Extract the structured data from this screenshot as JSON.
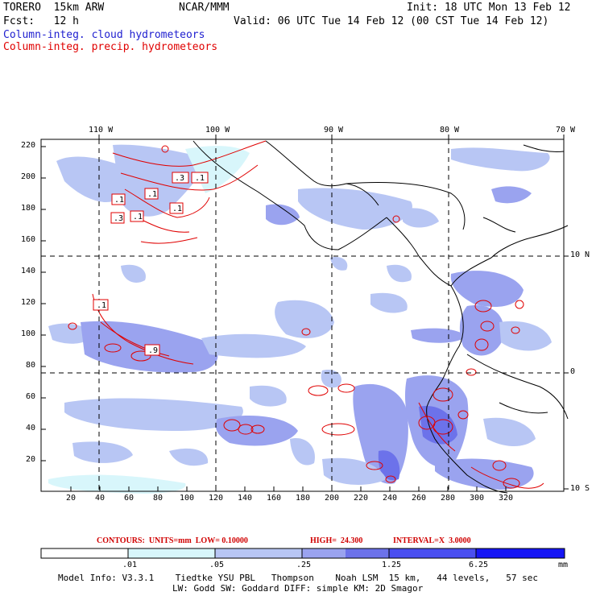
{
  "header": {
    "model": "TORERO  15km ARW",
    "org": "NCAR/MMM",
    "init": "Init: 18 UTC Mon 13 Feb 12",
    "fcst": "Fcst:   12 h",
    "valid": "Valid: 06 UTC Tue 14 Feb 12 (00 CST Tue 14 Feb 12)",
    "field_blue": "Column-integ. cloud hydrometeors",
    "field_red": "Column-integ. precip. hydrometeors"
  },
  "axes": {
    "top_lon_labels": [
      "110 W",
      "100 W",
      "90 W",
      "80 W",
      "70 W"
    ],
    "right_lat_labels": [
      "10 N",
      "0",
      "10 S"
    ],
    "left_y_ticks": [
      "220",
      "200",
      "180",
      "160",
      "140",
      "120",
      "100",
      "80",
      "60",
      "40",
      "20"
    ],
    "bottom_x_ticks": [
      "20",
      "40",
      "60",
      "80",
      "100",
      "120",
      "140",
      "160",
      "180",
      "200",
      "220",
      "240",
      "260",
      "280",
      "300",
      "320"
    ]
  },
  "contour_boxes": [
    ".1",
    ".3",
    ".1",
    ".1",
    ".3",
    ".1",
    ".1",
    ".1",
    ".9"
  ],
  "contour_info": {
    "units": "CONTOURS:  UNITS=mm  LOW= 0.10000",
    "high": "HIGH=  24.300",
    "interval": "INTERVAL=X  3.0000"
  },
  "colorbar": {
    "levels": [
      ".01",
      ".05",
      ".25",
      "1.25",
      "6.25"
    ],
    "unit": "mm",
    "colors": [
      "#ffffff",
      "#d8f6fb",
      "#b8c6f4",
      "#9aa3ef",
      "#6c72ea",
      "#4a4ff0",
      "#1616f5"
    ]
  },
  "footer": {
    "line1": "Model Info: V3.3.1    Tiedtke YSU PBL   Thompson    Noah LSM  15 km,   44 levels,   57 sec",
    "line2": "LW: Godd SW: Goddard DIFF: simple KM: 2D Smagor"
  }
}
